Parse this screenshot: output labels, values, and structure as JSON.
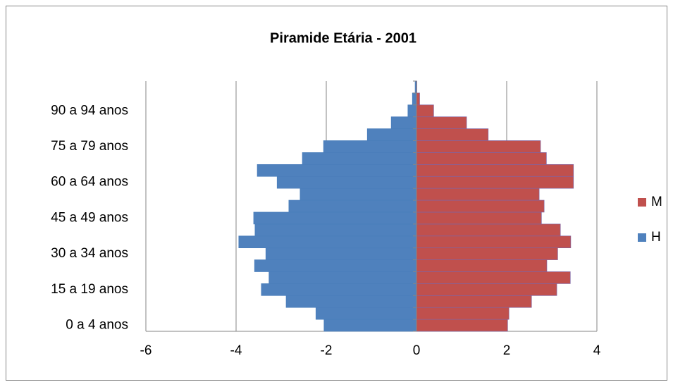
{
  "chart_data": {
    "type": "bar",
    "orientation": "horizontal",
    "stacked": true,
    "title": "Piramide Etária - 2001",
    "categories": [
      "0 a 4 anos",
      null,
      null,
      "15 a 19 anos",
      null,
      null,
      "30 a 34 anos",
      null,
      null,
      "45 a 49 anos",
      null,
      null,
      "60 a 64 anos",
      null,
      null,
      "75 a 79 anos",
      null,
      null,
      "90 a 94 anos",
      null,
      null
    ],
    "series": [
      {
        "name": "M",
        "color": "#c0504d",
        "values": [
          2.02,
          2.05,
          2.55,
          3.11,
          3.41,
          2.89,
          3.13,
          3.42,
          3.19,
          2.77,
          2.83,
          2.72,
          3.48,
          3.48,
          2.88,
          2.75,
          1.59,
          1.11,
          0.38,
          0.07,
          0.01
        ]
      },
      {
        "name": "H",
        "color": "#4f81bd",
        "values": [
          -2.05,
          -2.23,
          -2.89,
          -3.44,
          -3.27,
          -3.59,
          -3.34,
          -3.94,
          -3.58,
          -3.61,
          -2.83,
          -2.58,
          -3.09,
          -3.53,
          -2.53,
          -2.06,
          -1.09,
          -0.56,
          -0.19,
          -0.09,
          -0.03
        ]
      }
    ],
    "xlim": [
      -6,
      4
    ],
    "xticks": [
      -6,
      -4,
      -2,
      0,
      2,
      4
    ],
    "grid": true,
    "legend": "right"
  }
}
